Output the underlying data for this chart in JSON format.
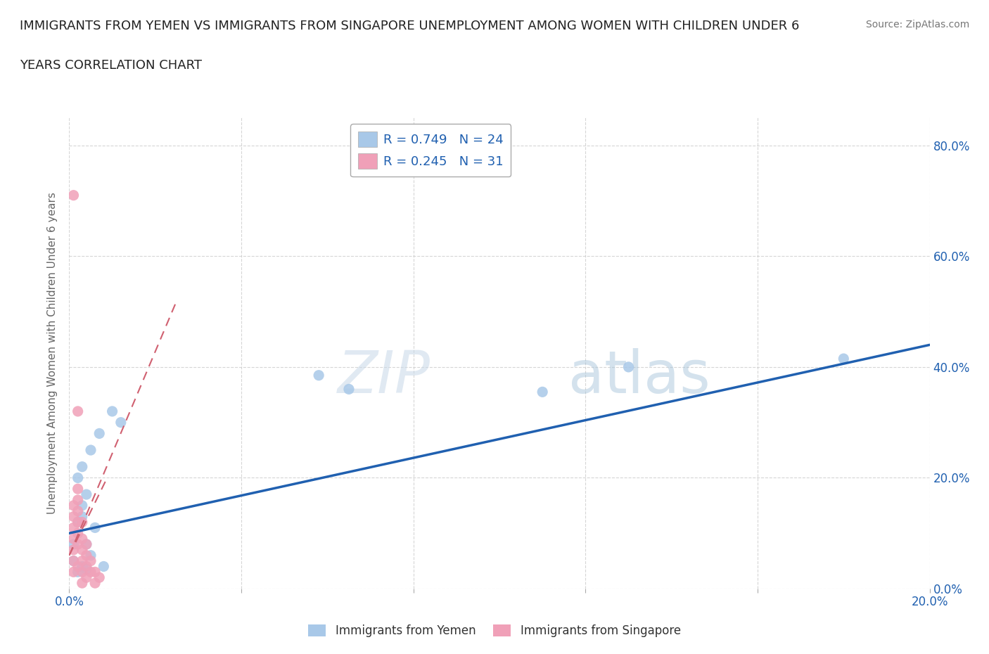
{
  "title_line1": "IMMIGRANTS FROM YEMEN VS IMMIGRANTS FROM SINGAPORE UNEMPLOYMENT AMONG WOMEN WITH CHILDREN UNDER 6",
  "title_line2": "YEARS CORRELATION CHART",
  "source": "Source: ZipAtlas.com",
  "ylabel": "Unemployment Among Women with Children Under 6 years",
  "xlim": [
    0.0,
    0.2
  ],
  "ylim": [
    0.0,
    0.85
  ],
  "legend1_label": "R = 0.749   N = 24",
  "legend2_label": "R = 0.245   N = 31",
  "legend_bottom_label1": "Immigrants from Yemen",
  "legend_bottom_label2": "Immigrants from Singapore",
  "color_yemen": "#a8c8e8",
  "color_singapore": "#f0a0b8",
  "color_yemen_line": "#2060b0",
  "color_singapore_line": "#d06070",
  "watermark_zip": "ZIP",
  "watermark_atlas": "atlas",
  "yemen_scatter_x": [
    0.001,
    0.001,
    0.002,
    0.002,
    0.003,
    0.003,
    0.004,
    0.005,
    0.006,
    0.007,
    0.008,
    0.01,
    0.012,
    0.002,
    0.003,
    0.004,
    0.058,
    0.065,
    0.004,
    0.11,
    0.13,
    0.18,
    0.003,
    0.005
  ],
  "yemen_scatter_y": [
    0.05,
    0.08,
    0.12,
    0.2,
    0.15,
    0.22,
    0.17,
    0.25,
    0.11,
    0.28,
    0.04,
    0.32,
    0.3,
    0.03,
    0.13,
    0.08,
    0.385,
    0.36,
    0.035,
    0.355,
    0.4,
    0.415,
    0.04,
    0.06
  ],
  "singapore_scatter_x": [
    0.001,
    0.001,
    0.001,
    0.001,
    0.001,
    0.001,
    0.001,
    0.002,
    0.002,
    0.002,
    0.002,
    0.002,
    0.002,
    0.003,
    0.003,
    0.003,
    0.003,
    0.003,
    0.004,
    0.004,
    0.004,
    0.005,
    0.005,
    0.006,
    0.006,
    0.007,
    0.001,
    0.002,
    0.003,
    0.004,
    0.002
  ],
  "singapore_scatter_y": [
    0.71,
    0.03,
    0.05,
    0.07,
    0.09,
    0.11,
    0.13,
    0.32,
    0.08,
    0.1,
    0.12,
    0.14,
    0.16,
    0.07,
    0.09,
    0.05,
    0.03,
    0.01,
    0.04,
    0.02,
    0.06,
    0.05,
    0.03,
    0.03,
    0.01,
    0.02,
    0.15,
    0.18,
    0.12,
    0.08,
    0.04
  ],
  "yemen_line_x": [
    0.0,
    0.2
  ],
  "yemen_line_y": [
    0.1,
    0.44
  ],
  "singapore_line_x": [
    0.0,
    0.0085
  ],
  "singapore_line_y": [
    0.06,
    0.195
  ],
  "background_color": "#ffffff",
  "grid_color": "#cccccc",
  "title_fontsize": 13,
  "label_fontsize": 11,
  "tick_fontsize": 12,
  "legend_fontsize": 13
}
